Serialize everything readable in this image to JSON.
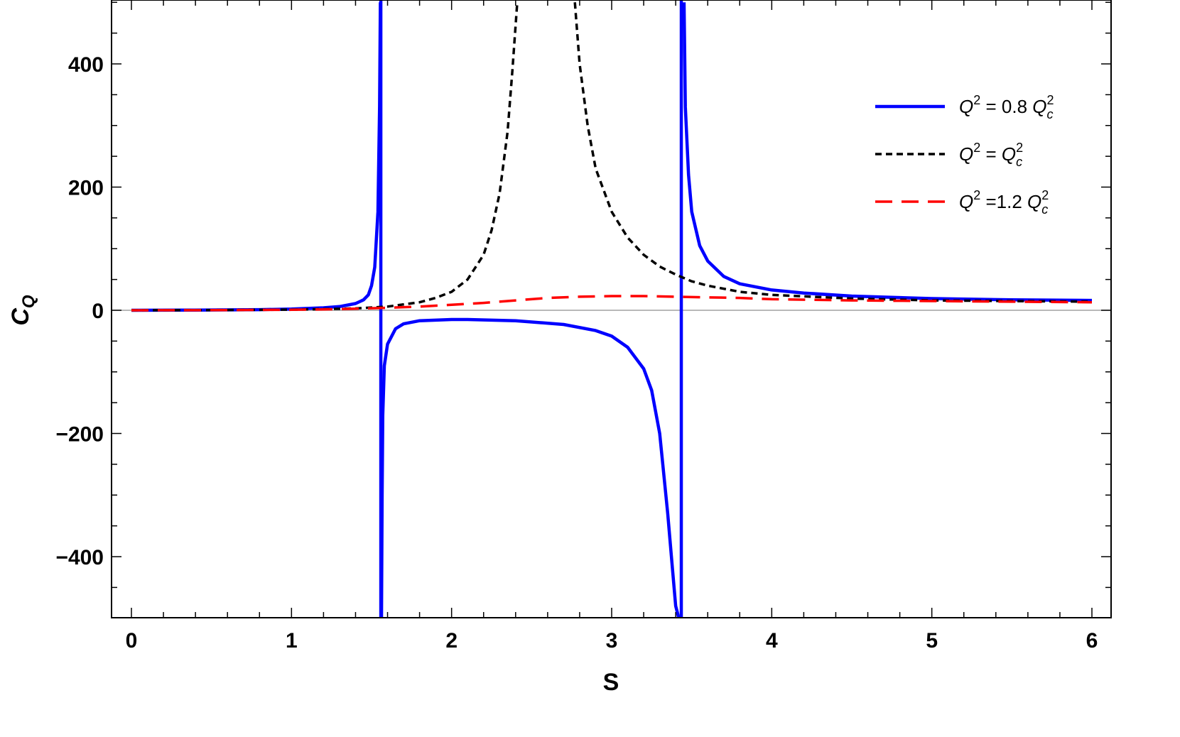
{
  "chart_data": {
    "type": "line",
    "title": "",
    "xlabel": "S",
    "ylabel": "C",
    "ylabel_subscript": "Q",
    "xlim": [
      0,
      6
    ],
    "ylim": [
      -500,
      500
    ],
    "x_ticks": [
      0,
      1,
      2,
      3,
      4,
      5,
      6
    ],
    "x_tick_labels": [
      "0",
      "1",
      "2",
      "3",
      "4",
      "5",
      "6"
    ],
    "y_ticks": [
      -400,
      -200,
      0,
      200,
      400
    ],
    "y_tick_labels": [
      "−400",
      "−200",
      "0",
      "200",
      "400"
    ],
    "grid": false,
    "legend_position": "top-right",
    "series": [
      {
        "name": "Q² = 0.8 Q_c²",
        "legend": {
          "pre": "Q",
          "pre_sup": "2",
          "mid": " = 0.8 ",
          "post": "Q",
          "post_sub": "c",
          "post_sup": "2"
        },
        "color": "#0000ff",
        "style": "solid",
        "segments": [
          {
            "x": [
              0,
              0.4,
              0.8,
              1.0,
              1.2,
              1.3,
              1.4,
              1.45,
              1.48,
              1.5,
              1.52,
              1.54,
              1.55,
              1.555
            ],
            "y": [
              0,
              0.3,
              1,
              2,
              4,
              6,
              11,
              17,
              25,
              40,
              70,
              160,
              330,
              500
            ]
          },
          {
            "x": [
              1.562,
              1.566,
              1.57,
              1.58,
              1.6,
              1.65,
              1.7,
              1.8,
              2.0,
              2.1,
              2.4,
              2.7,
              2.9,
              3.0,
              3.1,
              3.2,
              3.25,
              3.3,
              3.35,
              3.38,
              3.4,
              3.42
            ],
            "y": [
              -500,
              -300,
              -170,
              -90,
              -55,
              -30,
              -22,
              -17,
              -15,
              -15,
              -17,
              -23,
              -33,
              -42,
              -60,
              -95,
              -130,
              -200,
              -330,
              -420,
              -480,
              -500
            ]
          },
          {
            "x": [
              3.452,
              3.46,
              3.48,
              3.5,
              3.55,
              3.6,
              3.7,
              3.8,
              4.0,
              4.2,
              4.5,
              5.0,
              5.5,
              6.0
            ],
            "y": [
              500,
              330,
              220,
              160,
              105,
              80,
              55,
              43,
              33,
              28,
              23,
              19,
              17,
              16
            ]
          }
        ],
        "vertical_lines": [
          1.558,
          3.435
        ]
      },
      {
        "name": "Q² = Q_c²",
        "legend": {
          "pre": "Q",
          "pre_sup": "2",
          "mid": " =  ",
          "post": "Q",
          "post_sub": "c",
          "post_sup": "2"
        },
        "color": "#000000",
        "style": "dotted",
        "segments": [
          {
            "x": [
              0,
              0.5,
              1.0,
              1.2,
              1.4,
              1.6,
              1.8,
              1.9,
              2.0,
              2.1,
              2.2,
              2.25,
              2.3,
              2.35,
              2.38,
              2.41
            ],
            "y": [
              0,
              0.3,
              1,
              2,
              3,
              6,
              13,
              20,
              30,
              50,
              90,
              130,
              190,
              290,
              390,
              500
            ]
          },
          {
            "x": [
              2.77,
              2.8,
              2.85,
              2.9,
              3.0,
              3.1,
              3.2,
              3.3,
              3.4,
              3.5,
              3.6,
              3.8,
              4.0,
              4.5,
              5.0,
              5.5,
              6.0
            ],
            "y": [
              500,
              400,
              300,
              230,
              160,
              118,
              90,
              71,
              58,
              47,
              40,
              30,
              25,
              19,
              16,
              15,
              14
            ]
          }
        ]
      },
      {
        "name": "Q² =1.2 Q_c²",
        "legend": {
          "pre": "Q",
          "pre_sup": "2",
          "mid": " =1.2 ",
          "post": "Q",
          "post_sub": "c",
          "post_sup": "2"
        },
        "color": "#ff0000",
        "style": "dashed",
        "segments": [
          {
            "x": [
              0,
              0.5,
              1.0,
              1.2,
              1.4,
              1.6,
              1.8,
              2.0,
              2.2,
              2.4,
              2.6,
              2.8,
              3.0,
              3.2,
              3.4,
              3.6,
              3.8,
              4.0,
              4.5,
              5.0,
              5.5,
              6.0
            ],
            "y": [
              0,
              0.2,
              0.8,
              1.5,
              2.5,
              4,
              6,
              9,
              12,
              16,
              20,
              22,
              23,
              23,
              22,
              21,
              20,
              18,
              16,
              15,
              14,
              13
            ]
          }
        ]
      }
    ]
  }
}
